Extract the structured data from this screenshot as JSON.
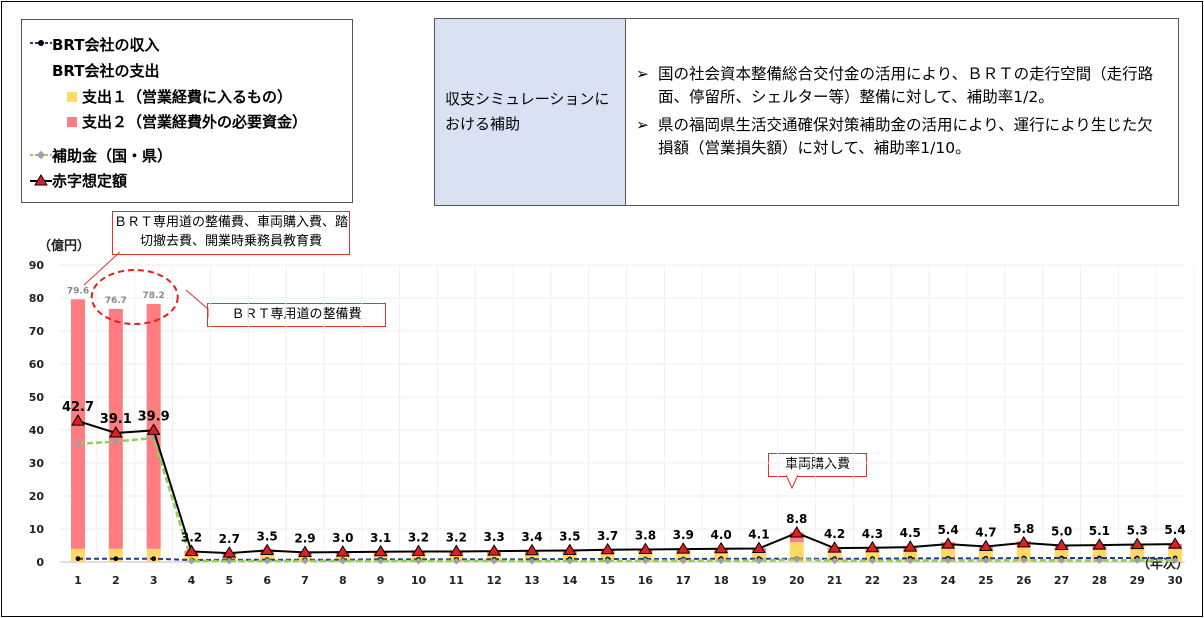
{
  "legend": {
    "income": "BRT会社の収入",
    "expense": "BRT会社の支出",
    "expense1": "支出１（営業経費に入るもの）",
    "expense2": "支出２（営業経費外の必要資金）",
    "subsidy": "補助金（国・県）",
    "deficit": "赤字想定額"
  },
  "info": {
    "heading": "収支シミュレーションにおける補助",
    "bullet_mark": "➢",
    "bullets": [
      "国の社会資本整備総合交付金の活用により、ＢＲＴの走行空間（走行路面、停留所、シェルター等）整備に対して、補助率1/2。",
      "県の福岡県生活交通確保対策補助金の活用により、運行により生じた欠損額（営業損失額）に対して、補助率1/10。"
    ]
  },
  "callouts": {
    "top": "ＢＲＴ専用道の整備費、車両購入費、踏切撤去費、開業時乗務員教育費",
    "right": "ＢＲＴ専用道の整備費",
    "vehicle": "車両購入費"
  },
  "chart_data": {
    "type": "bar",
    "ylabel": "（億円）",
    "xlabel": "（年次）",
    "ylim": [
      0,
      90
    ],
    "yticks": [
      0,
      10,
      20,
      30,
      40,
      50,
      60,
      70,
      80,
      90
    ],
    "categories": [
      "1",
      "2",
      "3",
      "4",
      "5",
      "6",
      "7",
      "8",
      "9",
      "10",
      "11",
      "12",
      "13",
      "14",
      "15",
      "16",
      "17",
      "18",
      "19",
      "20",
      "21",
      "22",
      "23",
      "24",
      "25",
      "26",
      "27",
      "28",
      "29",
      "30"
    ],
    "stacked_labels": [
      79.6,
      76.7,
      78.2
    ],
    "series": [
      {
        "name": "支出１（営業経費に入るもの）",
        "type": "bar",
        "color": "#ffd966",
        "values": [
          4.0,
          4.0,
          4.0,
          2.0,
          2.0,
          2.2,
          2.1,
          2.2,
          2.2,
          2.3,
          2.3,
          2.3,
          2.4,
          2.5,
          2.5,
          2.6,
          2.6,
          2.7,
          2.7,
          6.0,
          2.9,
          3.0,
          3.1,
          4.0,
          3.3,
          4.4,
          3.6,
          3.7,
          3.8,
          3.9
        ]
      },
      {
        "name": "支出２（営業経費外の必要資金）",
        "type": "bar",
        "color": "#ff7c80",
        "values": [
          75.6,
          72.7,
          74.2,
          1.5,
          1.0,
          1.6,
          1.1,
          1.1,
          1.2,
          1.2,
          1.2,
          1.2,
          1.2,
          1.2,
          1.3,
          1.4,
          1.4,
          1.5,
          1.5,
          3.0,
          1.5,
          1.5,
          1.6,
          2.0,
          1.6,
          1.9,
          1.6,
          1.6,
          1.6,
          1.6
        ]
      },
      {
        "name": "BRT会社の収入",
        "type": "line",
        "color": "#1f3c88",
        "values": [
          1.0,
          1.0,
          1.0,
          0.6,
          0.7,
          0.7,
          0.7,
          0.7,
          0.8,
          0.8,
          0.8,
          0.8,
          0.8,
          0.9,
          0.9,
          0.9,
          0.9,
          1.0,
          1.0,
          1.0,
          1.0,
          1.0,
          1.1,
          1.1,
          1.1,
          1.2,
          1.2,
          1.2,
          1.2,
          1.2
        ]
      },
      {
        "name": "補助金（国・県）",
        "type": "line",
        "color": "#92d050",
        "values": [
          35.8,
          36.5,
          37.6,
          0.3,
          0.3,
          0.3,
          0.3,
          0.3,
          0.3,
          0.3,
          0.3,
          0.3,
          0.3,
          0.3,
          0.3,
          0.4,
          0.4,
          0.4,
          0.4,
          0.8,
          0.4,
          0.4,
          0.4,
          0.5,
          0.5,
          0.6,
          0.5,
          0.5,
          0.5,
          0.5
        ]
      },
      {
        "name": "赤字想定額",
        "type": "line",
        "color": "#000000",
        "marker_color": "#e02020",
        "values": [
          42.7,
          39.1,
          39.9,
          3.2,
          2.7,
          3.5,
          2.9,
          3.0,
          3.1,
          3.2,
          3.2,
          3.3,
          3.4,
          3.5,
          3.7,
          3.8,
          3.9,
          4.0,
          4.1,
          8.8,
          4.2,
          4.3,
          4.5,
          5.4,
          4.7,
          5.8,
          5.0,
          5.1,
          5.3,
          5.4
        ]
      }
    ]
  }
}
